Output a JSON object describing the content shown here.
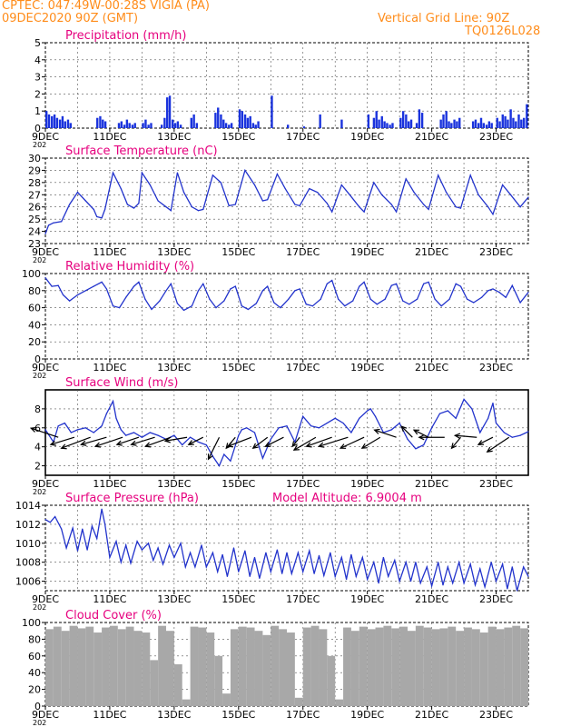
{
  "header": {
    "line1": "CPTEC:   047:49W-00:28S   VIGIA (PA)",
    "line2": "09DEC2020 90Z (GMT)",
    "grid_note": "Vertical Grid Line: 90Z",
    "code": "TQ0126L028"
  },
  "colors": {
    "header": "#ff8c1a",
    "title": "#e6007e",
    "line": "#2233cc",
    "bar": "#1a33dd",
    "cloud": "#a8a8a8",
    "wind_arrow": "#000000"
  },
  "x_axis": {
    "labels": [
      "9DEC",
      "11DEC",
      "13DEC",
      "15DEC",
      "17DEC",
      "19DEC",
      "21DEC",
      "23DEC"
    ],
    "label_days": [
      9,
      11,
      13,
      15,
      17,
      19,
      21,
      23
    ],
    "start_day": 9,
    "end_day": 24,
    "year_stub": "202"
  },
  "chart_data": [
    {
      "type": "bar",
      "title": "Precipitation (mm/h)",
      "ylim": [
        0,
        5
      ],
      "yticks": [
        0,
        1,
        2,
        3,
        4,
        5
      ],
      "x": [
        9.0,
        9.08,
        9.17,
        9.25,
        9.33,
        9.42,
        9.5,
        9.58,
        9.67,
        9.75,
        10.58,
        10.67,
        10.75,
        10.83,
        11.25,
        11.33,
        11.42,
        11.5,
        11.58,
        11.67,
        11.75,
        12.0,
        12.08,
        12.17,
        12.25,
        12.58,
        12.67,
        12.75,
        12.83,
        12.92,
        13.0,
        13.08,
        13.17,
        13.5,
        13.58,
        13.67,
        14.25,
        14.33,
        14.42,
        14.5,
        14.58,
        14.67,
        14.75,
        15.0,
        15.08,
        15.17,
        15.25,
        15.33,
        15.42,
        15.5,
        15.58,
        16.0,
        16.5,
        17.0,
        17.5,
        18.17,
        19.0,
        19.17,
        19.25,
        19.33,
        19.42,
        19.5,
        19.58,
        19.67,
        19.75,
        20.0,
        20.08,
        20.17,
        20.25,
        20.33,
        20.5,
        20.58,
        20.67,
        21.25,
        21.33,
        21.42,
        21.5,
        21.58,
        21.67,
        21.75,
        21.83,
        22.25,
        22.33,
        22.42,
        22.5,
        22.58,
        22.67,
        22.75,
        22.83,
        23.0,
        23.08,
        23.17,
        23.25,
        23.33,
        23.42,
        23.5,
        23.58,
        23.67,
        23.75,
        23.83,
        23.92
      ],
      "values": [
        1.0,
        0.8,
        0.7,
        0.8,
        0.6,
        0.5,
        0.7,
        0.4,
        0.5,
        0.3,
        0.6,
        0.7,
        0.5,
        0.4,
        0.3,
        0.4,
        0.2,
        0.5,
        0.3,
        0.2,
        0.3,
        0.3,
        0.5,
        0.2,
        0.3,
        0.2,
        0.6,
        1.8,
        1.9,
        0.5,
        0.3,
        0.4,
        0.2,
        0.6,
        0.8,
        0.3,
        0.9,
        1.2,
        0.8,
        0.5,
        0.3,
        0.2,
        0.3,
        1.1,
        1.0,
        0.8,
        0.6,
        0.7,
        0.3,
        0.2,
        0.4,
        1.9,
        0.2,
        0.1,
        0.8,
        0.5,
        0.8,
        0.6,
        1.0,
        0.5,
        0.7,
        0.4,
        0.3,
        0.2,
        0.3,
        0.6,
        1.0,
        0.8,
        0.4,
        0.5,
        0.3,
        1.1,
        0.9,
        0.5,
        0.8,
        1.0,
        0.4,
        0.3,
        0.5,
        0.4,
        0.6,
        0.4,
        0.5,
        0.3,
        0.6,
        0.3,
        0.2,
        0.4,
        0.3,
        0.6,
        0.4,
        0.8,
        0.7,
        0.5,
        1.1,
        0.6,
        0.4,
        0.8,
        0.5,
        0.6,
        1.4
      ]
    },
    {
      "type": "line",
      "title": "Surface Temperature (nC)",
      "ylim": [
        23,
        30
      ],
      "yticks": [
        23,
        24,
        25,
        26,
        27,
        28,
        29,
        30
      ],
      "x": [
        9.0,
        9.1,
        9.25,
        9.5,
        9.75,
        10.0,
        10.25,
        10.5,
        10.6,
        10.75,
        10.85,
        11.1,
        11.35,
        11.55,
        11.75,
        11.9,
        12.0,
        12.25,
        12.5,
        12.75,
        12.9,
        13.1,
        13.3,
        13.55,
        13.75,
        13.9,
        14.2,
        14.45,
        14.7,
        14.9,
        15.2,
        15.5,
        15.75,
        15.9,
        16.2,
        16.45,
        16.75,
        16.9,
        17.2,
        17.45,
        17.75,
        17.9,
        18.2,
        18.45,
        18.75,
        18.9,
        19.2,
        19.45,
        19.75,
        19.9,
        20.2,
        20.45,
        20.75,
        20.9,
        21.2,
        21.45,
        21.75,
        21.9,
        22.2,
        22.45,
        22.75,
        22.9,
        23.2,
        23.45,
        23.75,
        24.0
      ],
      "values": [
        23.8,
        24.5,
        24.7,
        24.8,
        26.2,
        27.2,
        26.5,
        25.8,
        25.2,
        25.1,
        25.8,
        28.8,
        27.5,
        26.2,
        25.9,
        26.3,
        28.8,
        27.8,
        26.5,
        26.0,
        25.7,
        28.8,
        27.2,
        26.0,
        25.7,
        25.8,
        28.6,
        28.0,
        26.1,
        26.2,
        29.0,
        27.8,
        26.5,
        26.6,
        28.7,
        27.5,
        26.2,
        26.1,
        27.5,
        27.2,
        26.3,
        25.6,
        27.8,
        27.0,
        26.0,
        25.6,
        28.0,
        27.0,
        26.2,
        25.6,
        28.3,
        27.2,
        26.2,
        25.8,
        28.6,
        27.2,
        26.0,
        25.9,
        28.6,
        27.0,
        26.0,
        25.4,
        27.8,
        27.0,
        26.0,
        26.8
      ]
    },
    {
      "type": "line",
      "title": "Relative Humidity (%)",
      "ylim": [
        0,
        100
      ],
      "yticks": [
        0,
        20,
        40,
        60,
        80,
        100
      ],
      "x": [
        9.0,
        9.2,
        9.4,
        9.55,
        9.75,
        10.0,
        10.25,
        10.5,
        10.75,
        10.9,
        11.1,
        11.3,
        11.5,
        11.75,
        11.9,
        12.1,
        12.3,
        12.55,
        12.75,
        12.9,
        13.1,
        13.3,
        13.55,
        13.75,
        13.9,
        14.1,
        14.3,
        14.55,
        14.75,
        14.9,
        15.1,
        15.3,
        15.55,
        15.75,
        15.9,
        16.1,
        16.3,
        16.55,
        16.75,
        16.9,
        17.1,
        17.3,
        17.55,
        17.75,
        17.9,
        18.1,
        18.3,
        18.55,
        18.75,
        18.9,
        19.1,
        19.3,
        19.55,
        19.75,
        19.9,
        20.1,
        20.3,
        20.55,
        20.75,
        20.9,
        21.1,
        21.3,
        21.55,
        21.75,
        21.9,
        22.1,
        22.3,
        22.55,
        22.75,
        22.9,
        23.1,
        23.3,
        23.5,
        23.75,
        24.0
      ],
      "values": [
        95,
        85,
        86,
        75,
        68,
        75,
        80,
        85,
        90,
        82,
        62,
        60,
        72,
        85,
        90,
        70,
        58,
        68,
        80,
        88,
        65,
        57,
        62,
        80,
        88,
        70,
        60,
        68,
        82,
        85,
        62,
        58,
        65,
        80,
        85,
        66,
        60,
        70,
        80,
        82,
        64,
        62,
        70,
        88,
        92,
        70,
        62,
        68,
        85,
        90,
        70,
        64,
        70,
        86,
        88,
        68,
        64,
        70,
        88,
        90,
        70,
        62,
        70,
        88,
        85,
        70,
        66,
        72,
        80,
        82,
        78,
        72,
        86,
        66,
        78
      ]
    },
    {
      "type": "line",
      "title": "Surface Wind (m/s)",
      "ylim": [
        1,
        10
      ],
      "yticks": [
        2,
        4,
        6,
        8
      ],
      "x": [
        9.0,
        9.25,
        9.4,
        9.6,
        9.8,
        10.0,
        10.25,
        10.5,
        10.75,
        10.9,
        11.1,
        11.2,
        11.35,
        11.5,
        11.75,
        12.0,
        12.25,
        12.5,
        12.75,
        13.0,
        13.25,
        13.5,
        13.75,
        14.0,
        14.2,
        14.4,
        14.55,
        14.75,
        15.0,
        15.1,
        15.25,
        15.5,
        15.75,
        16.0,
        16.25,
        16.5,
        16.75,
        17.0,
        17.25,
        17.5,
        17.75,
        18.0,
        18.25,
        18.5,
        18.75,
        19.0,
        19.1,
        19.25,
        19.5,
        19.75,
        20.0,
        20.25,
        20.5,
        20.75,
        21.0,
        21.25,
        21.5,
        21.75,
        22.0,
        22.25,
        22.5,
        22.75,
        22.9,
        23.0,
        23.25,
        23.5,
        23.75,
        24.0
      ],
      "values": [
        5.8,
        4.5,
        6.2,
        6.5,
        5.5,
        5.8,
        6.0,
        5.5,
        6.2,
        7.5,
        8.8,
        7.0,
        5.8,
        5.2,
        5.5,
        5.0,
        5.5,
        5.2,
        4.8,
        5.2,
        4.2,
        5.0,
        4.5,
        4.2,
        3.0,
        2.0,
        3.2,
        2.5,
        5.2,
        5.8,
        6.0,
        5.5,
        2.8,
        4.8,
        6.0,
        6.2,
        4.5,
        7.2,
        6.2,
        6.0,
        6.5,
        7.0,
        6.5,
        5.5,
        7.0,
        7.8,
        8.0,
        7.2,
        5.5,
        5.8,
        6.5,
        4.8,
        3.8,
        4.2,
        6.0,
        7.5,
        7.8,
        7.0,
        9.0,
        8.0,
        5.5,
        7.0,
        8.6,
        6.5,
        5.5,
        5.0,
        5.2,
        5.6
      ],
      "vectors": {
        "x": [
          9.4,
          9.9,
          10.4,
          10.9,
          11.4,
          11.9,
          12.4,
          12.9,
          13.4,
          13.9,
          14.4,
          14.9,
          15.4,
          15.9,
          16.4,
          16.9,
          17.4,
          17.9,
          18.4,
          18.9,
          19.4,
          19.9,
          20.4,
          20.9,
          21.4,
          21.9,
          22.4,
          22.9,
          23.4
        ],
        "u": [
          -1.5,
          -1.3,
          -1.6,
          -1.4,
          -1.5,
          -1.2,
          -1.3,
          -1.4,
          -1.2,
          -0.8,
          -0.6,
          -0.5,
          -1.3,
          -0.8,
          -1.0,
          -0.4,
          -1.2,
          -1.4,
          -1.6,
          -1.3,
          -1.0,
          -1.2,
          -0.6,
          -0.8,
          -1.4,
          -0.5,
          -1.2,
          -0.8,
          -1.2
        ],
        "v": [
          0.5,
          -0.4,
          -0.6,
          -0.4,
          -0.5,
          -0.4,
          -0.4,
          -0.5,
          -0.2,
          -0.4,
          -1.2,
          -0.6,
          -0.5,
          -0.6,
          -0.5,
          -0.5,
          -0.7,
          -0.5,
          -0.5,
          -0.6,
          -0.6,
          0.4,
          0.6,
          0.4,
          0,
          -0.6,
          0.1,
          -0.4,
          -0.8
        ]
      }
    },
    {
      "type": "line",
      "title": "Surface Pressure (hPa)",
      "annotation": "Model Altitude: 6.9004 m",
      "ylim": [
        1005,
        1014
      ],
      "yticks": [
        1006,
        1008,
        1010,
        1012,
        1014
      ],
      "x": [
        9.0,
        9.15,
        9.3,
        9.5,
        9.65,
        9.85,
        10.0,
        10.15,
        10.3,
        10.45,
        10.6,
        10.75,
        10.85,
        11.0,
        11.2,
        11.35,
        11.5,
        11.65,
        11.85,
        12.0,
        12.2,
        12.35,
        12.5,
        12.65,
        12.85,
        13.0,
        13.2,
        13.35,
        13.5,
        13.65,
        13.85,
        14.0,
        14.2,
        14.35,
        14.5,
        14.65,
        14.85,
        15.0,
        15.2,
        15.35,
        15.5,
        15.65,
        15.85,
        16.0,
        16.2,
        16.35,
        16.5,
        16.65,
        16.85,
        17.0,
        17.2,
        17.35,
        17.5,
        17.65,
        17.85,
        18.0,
        18.2,
        18.35,
        18.5,
        18.65,
        18.85,
        19.0,
        19.2,
        19.35,
        19.5,
        19.65,
        19.85,
        20.0,
        20.2,
        20.35,
        20.5,
        20.65,
        20.85,
        21.0,
        21.2,
        21.35,
        21.5,
        21.65,
        21.85,
        22.0,
        22.2,
        22.35,
        22.5,
        22.65,
        22.85,
        23.0,
        23.2,
        23.35,
        23.5,
        23.65,
        23.85,
        24.0
      ],
      "values": [
        1012.5,
        1012.2,
        1012.8,
        1011.5,
        1009.5,
        1011.6,
        1009.2,
        1011.5,
        1009.3,
        1011.8,
        1010.5,
        1013.6,
        1012.0,
        1008.5,
        1010.2,
        1008.0,
        1009.8,
        1007.9,
        1010.2,
        1009.3,
        1010.0,
        1008.2,
        1009.5,
        1007.8,
        1009.8,
        1008.5,
        1010.0,
        1007.5,
        1009.0,
        1007.5,
        1009.8,
        1007.5,
        1009.0,
        1007.0,
        1008.8,
        1006.5,
        1009.5,
        1007.0,
        1009.2,
        1006.5,
        1008.5,
        1006.3,
        1009.0,
        1007.0,
        1009.3,
        1006.8,
        1009.0,
        1006.8,
        1009.0,
        1007.0,
        1009.2,
        1006.8,
        1008.7,
        1006.6,
        1009.0,
        1006.5,
        1008.5,
        1006.2,
        1008.8,
        1006.5,
        1008.5,
        1006.2,
        1008.0,
        1005.8,
        1008.5,
        1006.5,
        1008.2,
        1006.0,
        1008.0,
        1006.0,
        1008.0,
        1005.8,
        1007.5,
        1005.5,
        1008.0,
        1005.6,
        1007.5,
        1005.8,
        1008.0,
        1005.8,
        1007.8,
        1005.6,
        1007.3,
        1005.4,
        1008.0,
        1006.0,
        1007.8,
        1005.2,
        1007.5,
        1005.0,
        1007.5,
        1006.5
      ]
    },
    {
      "type": "bar",
      "title": "Cloud Cover (%)",
      "ylim": [
        0,
        100
      ],
      "yticks": [
        0,
        20,
        40,
        60,
        80,
        100
      ],
      "x": [
        9.0,
        9.25,
        9.5,
        9.75,
        10.0,
        10.25,
        10.5,
        10.75,
        11.0,
        11.25,
        11.5,
        11.75,
        12.0,
        12.25,
        12.5,
        12.75,
        13.0,
        13.25,
        13.5,
        13.75,
        14.0,
        14.25,
        14.5,
        14.75,
        15.0,
        15.25,
        15.5,
        15.75,
        16.0,
        16.25,
        16.5,
        16.75,
        17.0,
        17.25,
        17.5,
        17.75,
        18.0,
        18.25,
        18.5,
        18.75,
        19.0,
        19.25,
        19.5,
        19.75,
        20.0,
        20.25,
        20.5,
        20.75,
        21.0,
        21.25,
        21.5,
        21.75,
        22.0,
        22.25,
        22.5,
        22.75,
        23.0,
        23.25,
        23.5,
        23.75
      ],
      "values": [
        92,
        95,
        90,
        96,
        93,
        95,
        88,
        94,
        96,
        92,
        95,
        90,
        88,
        55,
        96,
        90,
        50,
        8,
        95,
        94,
        88,
        60,
        15,
        92,
        95,
        94,
        90,
        85,
        96,
        92,
        88,
        10,
        94,
        96,
        92,
        60,
        8,
        94,
        90,
        95,
        92,
        94,
        96,
        93,
        95,
        90,
        96,
        94,
        92,
        93,
        95,
        90,
        94,
        92,
        88,
        95,
        92,
        94,
        96,
        93
      ]
    }
  ]
}
